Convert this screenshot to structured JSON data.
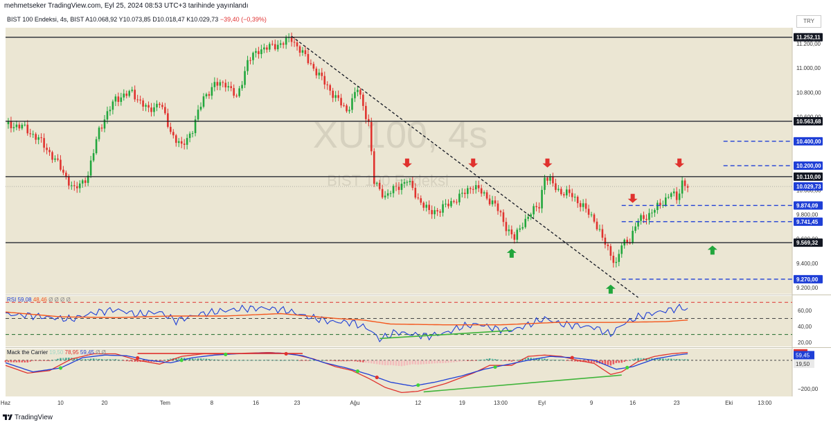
{
  "header": {
    "publisher": "mehmetseker TradingView.com, Eyl 25, 2024 08:53 UTC+3 tarihinde yayınlandı",
    "symbol": "BIST 100 Endeksi, 4s, BIST",
    "open": "A10.068,92",
    "high": "Y10.073,85",
    "low": "D10.018,47",
    "close": "K10.029,73",
    "change": "−39,40 (−0,39%)",
    "currency": "TRY"
  },
  "watermark": {
    "ticker": "XU100, 4s",
    "name": "BIST 100 Endeksi"
  },
  "footer": {
    "brand": "TradingView"
  },
  "colors": {
    "background": "#ebe6d3",
    "up": "#21a63c",
    "down": "#e0322e",
    "blue_line": "#1f3fd6",
    "orange_line": "#f4561c",
    "green_line": "#3fb43a"
  },
  "chart_data": {
    "type": "candlestick",
    "symbol": "XU100",
    "timeframe": "4s",
    "price_axis": {
      "ylim": [
        9150,
        11330
      ],
      "ticks": [
        "11.200,00",
        "11.000,00",
        "10.800,00",
        "10.600,00",
        "10.400,00",
        "10.200,00",
        "10.000,00",
        "9.800,00",
        "9.600,00",
        "9.400,00",
        "9.200,00"
      ]
    },
    "time_axis": {
      "labels": [
        {
          "label": "Haz",
          "i": 0
        },
        {
          "label": "10",
          "i": 20
        },
        {
          "label": "20",
          "i": 36
        },
        {
          "label": "Tem",
          "i": 58
        },
        {
          "label": "8",
          "i": 75
        },
        {
          "label": "16",
          "i": 91
        },
        {
          "label": "23",
          "i": 106
        },
        {
          "label": "Ağu",
          "i": 127
        },
        {
          "label": "12",
          "i": 150
        },
        {
          "label": "19",
          "i": 166
        },
        {
          "label": "13:00",
          "i": 180
        },
        {
          "label": "Eyl",
          "i": 195
        },
        {
          "label": "9",
          "i": 213
        },
        {
          "label": "16",
          "i": 228
        },
        {
          "label": "23",
          "i": 244
        },
        {
          "label": "Eki",
          "i": 263
        },
        {
          "label": "13:00",
          "i": 276
        }
      ]
    },
    "horizontal_levels": [
      {
        "price": 11252.11,
        "label": "11.252,11",
        "style": "solid"
      },
      {
        "price": 10563.68,
        "label": "10.563,68",
        "style": "solid"
      },
      {
        "price": 10110.0,
        "label": "10.110,00",
        "style": "solid"
      },
      {
        "price": 9569.32,
        "label": "9.569,32",
        "style": "solid"
      },
      {
        "price": 10400.0,
        "label": "10.400,00",
        "style": "dashed"
      },
      {
        "price": 10200.0,
        "label": "10.200,00",
        "style": "dashed"
      },
      {
        "price": 9874.09,
        "label": "9.874,09",
        "style": "dashed"
      },
      {
        "price": 9741.45,
        "label": "9.741,45",
        "style": "dashed"
      },
      {
        "price": 9270.0,
        "label": "9.270,00",
        "style": "dashed"
      }
    ],
    "last_price": {
      "price": 10029.73,
      "label": "10.029,73"
    },
    "trendline": {
      "from": {
        "i": 104,
        "price": 11260
      },
      "to": {
        "i": 230,
        "price": 9120
      }
    },
    "arrows": [
      {
        "i": 146,
        "price": 10185,
        "dir": "down"
      },
      {
        "i": 170,
        "price": 10185,
        "dir": "down"
      },
      {
        "i": 197,
        "price": 10185,
        "dir": "down"
      },
      {
        "i": 228,
        "price": 9895,
        "dir": "down"
      },
      {
        "i": 245,
        "price": 10185,
        "dir": "down"
      },
      {
        "i": 184,
        "price": 9520,
        "dir": "up"
      },
      {
        "i": 220,
        "price": 9225,
        "dir": "up"
      },
      {
        "i": 257,
        "price": 9545,
        "dir": "up"
      }
    ],
    "price_path": [
      [
        0,
        10540
      ],
      [
        6,
        10520
      ],
      [
        12,
        10420
      ],
      [
        18,
        10250
      ],
      [
        25,
        10000
      ],
      [
        30,
        10120
      ],
      [
        34,
        10500
      ],
      [
        40,
        10750
      ],
      [
        46,
        10800
      ],
      [
        52,
        10650
      ],
      [
        56,
        10720
      ],
      [
        60,
        10480
      ],
      [
        64,
        10350
      ],
      [
        68,
        10500
      ],
      [
        72,
        10760
      ],
      [
        76,
        10860
      ],
      [
        80,
        10880
      ],
      [
        84,
        10750
      ],
      [
        88,
        11050
      ],
      [
        92,
        11150
      ],
      [
        96,
        11170
      ],
      [
        100,
        11200
      ],
      [
        104,
        11240
      ],
      [
        108,
        11120
      ],
      [
        112,
        11000
      ],
      [
        116,
        10880
      ],
      [
        120,
        10760
      ],
      [
        124,
        10650
      ],
      [
        128,
        10830
      ],
      [
        132,
        10550
      ],
      [
        134,
        10060
      ],
      [
        138,
        9950
      ],
      [
        142,
        10020
      ],
      [
        146,
        10080
      ],
      [
        150,
        9930
      ],
      [
        154,
        9820
      ],
      [
        158,
        9840
      ],
      [
        162,
        9900
      ],
      [
        166,
        9960
      ],
      [
        170,
        10040
      ],
      [
        174,
        9960
      ],
      [
        178,
        9880
      ],
      [
        182,
        9700
      ],
      [
        185,
        9600
      ],
      [
        188,
        9730
      ],
      [
        191,
        9810
      ],
      [
        194,
        9880
      ],
      [
        196,
        10110
      ],
      [
        198,
        10070
      ],
      [
        202,
        9980
      ],
      [
        206,
        9960
      ],
      [
        210,
        9860
      ],
      [
        214,
        9760
      ],
      [
        217,
        9600
      ],
      [
        220,
        9480
      ],
      [
        222,
        9390
      ],
      [
        224,
        9550
      ],
      [
        227,
        9600
      ],
      [
        230,
        9750
      ],
      [
        234,
        9800
      ],
      [
        238,
        9880
      ],
      [
        242,
        9980
      ],
      [
        244,
        9920
      ],
      [
        246,
        10070
      ],
      [
        248,
        10030
      ]
    ],
    "rsi": {
      "label": "RSI",
      "values_label": "59,08",
      "ma_label": "48,46",
      "extra": "Ø Ø Ø Ø",
      "levels": [
        70,
        50,
        30
      ],
      "ticks": [
        "60,00",
        "40,00",
        "20,00"
      ],
      "ylim": [
        15,
        78
      ],
      "rsi_path": [
        [
          0,
          55
        ],
        [
          8,
          54
        ],
        [
          16,
          51
        ],
        [
          24,
          49
        ],
        [
          32,
          57
        ],
        [
          40,
          61
        ],
        [
          48,
          55
        ],
        [
          56,
          58
        ],
        [
          62,
          47
        ],
        [
          70,
          55
        ],
        [
          78,
          59
        ],
        [
          86,
          62
        ],
        [
          94,
          63
        ],
        [
          102,
          60
        ],
        [
          110,
          52
        ],
        [
          118,
          46
        ],
        [
          126,
          45
        ],
        [
          132,
          37
        ],
        [
          136,
          24
        ],
        [
          142,
          33
        ],
        [
          148,
          30
        ],
        [
          154,
          28
        ],
        [
          160,
          32
        ],
        [
          166,
          40
        ],
        [
          172,
          43
        ],
        [
          178,
          37
        ],
        [
          184,
          35
        ],
        [
          190,
          42
        ],
        [
          196,
          50
        ],
        [
          202,
          43
        ],
        [
          208,
          41
        ],
        [
          214,
          39
        ],
        [
          220,
          30
        ],
        [
          224,
          42
        ],
        [
          230,
          52
        ],
        [
          236,
          57
        ],
        [
          242,
          61
        ],
        [
          246,
          64
        ],
        [
          248,
          60
        ]
      ],
      "ma_path": [
        [
          0,
          58
        ],
        [
          20,
          52
        ],
        [
          40,
          51
        ],
        [
          60,
          53
        ],
        [
          80,
          53
        ],
        [
          100,
          56
        ],
        [
          120,
          50
        ],
        [
          130,
          48
        ],
        [
          140,
          43
        ],
        [
          160,
          42
        ],
        [
          180,
          42
        ],
        [
          200,
          45
        ],
        [
          220,
          45
        ],
        [
          240,
          46
        ],
        [
          248,
          48
        ]
      ],
      "divergence": [
        [
          136,
          25
        ],
        [
          184,
          35
        ]
      ]
    },
    "mack": {
      "label": "Mack the Carrier",
      "v1": "19,50",
      "v2": "78,95",
      "v3": "59,45",
      "extra": "Ø Ø",
      "axis_labels": [
        "59,45",
        "19,50",
        "−200,00"
      ],
      "top_label": "78,95",
      "ylim": [
        -260,
        110
      ],
      "dotted_level": 19.5,
      "red_path": [
        [
          0,
          -20
        ],
        [
          8,
          -80
        ],
        [
          16,
          -60
        ],
        [
          24,
          30
        ],
        [
          32,
          70
        ],
        [
          40,
          70
        ],
        [
          48,
          20
        ],
        [
          56,
          -10
        ],
        [
          64,
          50
        ],
        [
          72,
          70
        ],
        [
          80,
          68
        ],
        [
          88,
          75
        ],
        [
          96,
          80
        ],
        [
          104,
          70
        ],
        [
          112,
          30
        ],
        [
          120,
          -30
        ],
        [
          126,
          -60
        ],
        [
          132,
          -120
        ],
        [
          138,
          -190
        ],
        [
          144,
          -230
        ],
        [
          150,
          -220
        ],
        [
          160,
          -160
        ],
        [
          170,
          -80
        ],
        [
          176,
          -20
        ],
        [
          184,
          -20
        ],
        [
          190,
          50
        ],
        [
          196,
          60
        ],
        [
          202,
          50
        ],
        [
          208,
          20
        ],
        [
          214,
          -5
        ],
        [
          220,
          -90
        ],
        [
          224,
          -70
        ],
        [
          230,
          10
        ],
        [
          236,
          50
        ],
        [
          242,
          70
        ],
        [
          248,
          80
        ]
      ],
      "blue_path": [
        [
          0,
          0
        ],
        [
          10,
          -70
        ],
        [
          20,
          -40
        ],
        [
          28,
          40
        ],
        [
          36,
          60
        ],
        [
          44,
          55
        ],
        [
          52,
          20
        ],
        [
          60,
          0
        ],
        [
          68,
          40
        ],
        [
          76,
          60
        ],
        [
          84,
          70
        ],
        [
          92,
          75
        ],
        [
          100,
          75
        ],
        [
          108,
          55
        ],
        [
          116,
          0
        ],
        [
          124,
          -40
        ],
        [
          132,
          -90
        ],
        [
          140,
          -150
        ],
        [
          148,
          -180
        ],
        [
          156,
          -150
        ],
        [
          166,
          -100
        ],
        [
          174,
          -50
        ],
        [
          182,
          -15
        ],
        [
          190,
          20
        ],
        [
          198,
          50
        ],
        [
          206,
          40
        ],
        [
          214,
          20
        ],
        [
          222,
          -50
        ],
        [
          228,
          -30
        ],
        [
          236,
          30
        ],
        [
          244,
          60
        ],
        [
          248,
          70
        ]
      ],
      "histogram_note": "alternating green/red bars around zero",
      "top_line": [
        [
          48,
          72
        ],
        [
          108,
          72
        ]
      ],
      "bottom_line": [
        [
          152,
          -225
        ],
        [
          224,
          -95
        ]
      ]
    }
  }
}
